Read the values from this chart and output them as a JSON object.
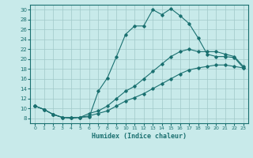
{
  "xlabel": "Humidex (Indice chaleur)",
  "ylabel": "",
  "bg_color": "#c8eaea",
  "grid_color": "#a0c8c8",
  "line_color": "#1a7070",
  "xlim": [
    -0.5,
    23.5
  ],
  "ylim": [
    7,
    31
  ],
  "xticks": [
    0,
    1,
    2,
    3,
    4,
    5,
    6,
    7,
    8,
    9,
    10,
    11,
    12,
    13,
    14,
    15,
    16,
    17,
    18,
    19,
    20,
    21,
    22,
    23
  ],
  "yticks": [
    8,
    10,
    12,
    14,
    16,
    18,
    20,
    22,
    24,
    26,
    28,
    30
  ],
  "curve1_x": [
    0,
    1,
    2,
    3,
    4,
    5,
    6,
    7,
    8,
    9,
    10,
    11,
    12,
    13,
    14,
    15,
    16,
    17,
    18,
    19,
    20,
    21,
    22,
    23
  ],
  "curve1_y": [
    10.5,
    9.8,
    8.8,
    8.2,
    8.1,
    8.2,
    8.3,
    13.5,
    16.2,
    20.5,
    25.0,
    26.7,
    26.7,
    30.0,
    29.0,
    30.2,
    28.8,
    27.2,
    24.3,
    21.0,
    20.5,
    20.5,
    20.3,
    18.2
  ],
  "curve2_x": [
    0,
    1,
    2,
    3,
    4,
    5,
    6,
    7,
    8,
    9,
    10,
    11,
    12,
    13,
    14,
    15,
    16,
    17,
    18,
    19,
    20,
    21,
    22,
    23
  ],
  "curve2_y": [
    10.5,
    9.8,
    8.8,
    8.2,
    8.1,
    8.2,
    9.0,
    9.5,
    10.5,
    12.0,
    13.5,
    14.5,
    16.0,
    17.5,
    19.0,
    20.5,
    21.5,
    22.0,
    21.5,
    21.5,
    21.5,
    21.0,
    20.5,
    18.5
  ],
  "curve3_x": [
    0,
    1,
    2,
    3,
    4,
    5,
    6,
    7,
    8,
    9,
    10,
    11,
    12,
    13,
    14,
    15,
    16,
    17,
    18,
    19,
    20,
    21,
    22,
    23
  ],
  "curve3_y": [
    10.5,
    9.8,
    8.8,
    8.2,
    8.1,
    8.2,
    8.5,
    9.0,
    9.5,
    10.5,
    11.5,
    12.2,
    13.0,
    14.0,
    15.0,
    16.0,
    17.0,
    17.8,
    18.2,
    18.5,
    18.8,
    18.8,
    18.5,
    18.2
  ]
}
